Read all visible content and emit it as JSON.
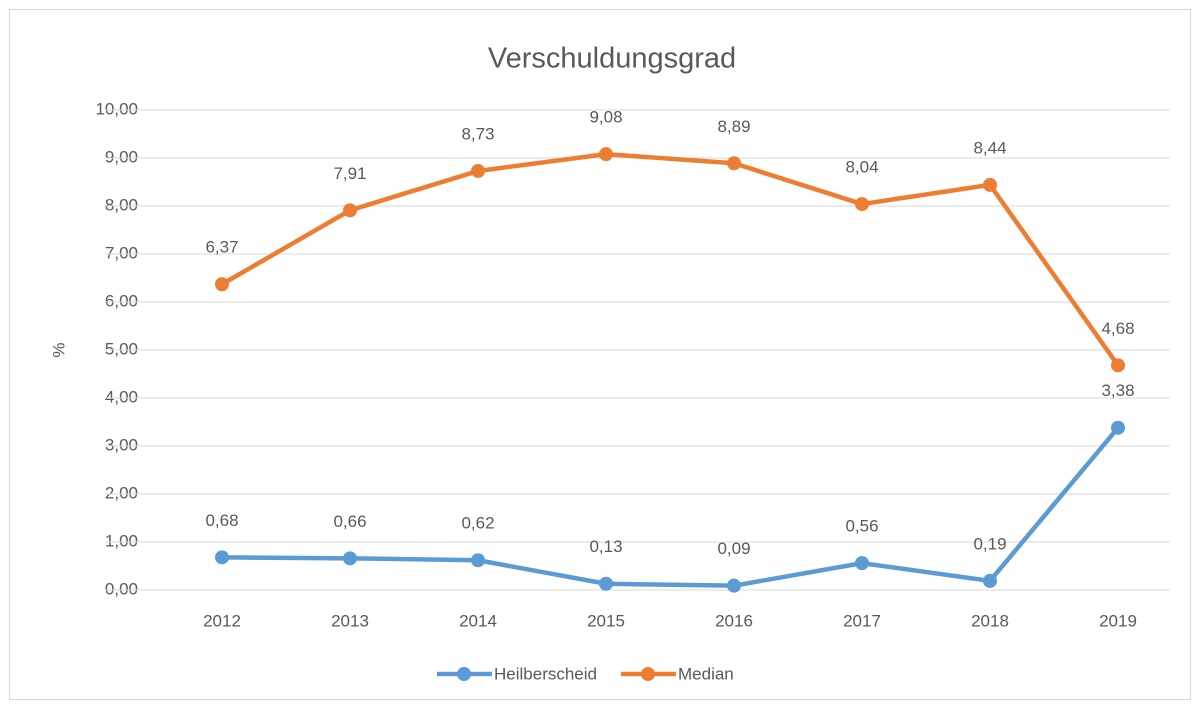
{
  "chart_data": {
    "type": "line",
    "title": "Verschuldungsgrad",
    "y_label": "%",
    "categories": [
      "2012",
      "2013",
      "2014",
      "2015",
      "2016",
      "2017",
      "2018",
      "2019"
    ],
    "series": [
      {
        "name": "Heilberscheid",
        "color": "#5b9bd5",
        "values": [
          0.68,
          0.66,
          0.62,
          0.13,
          0.09,
          0.56,
          0.19,
          3.38
        ],
        "value_labels": [
          "0,68",
          "0,66",
          "0,62",
          "0,13",
          "0,09",
          "0,56",
          "0,19",
          "3,38"
        ]
      },
      {
        "name": "Median",
        "color": "#ed7d31",
        "values": [
          6.37,
          7.91,
          8.73,
          9.08,
          8.89,
          8.04,
          8.44,
          4.68
        ],
        "value_labels": [
          "6,37",
          "7,91",
          "8,73",
          "9,08",
          "8,89",
          "8,04",
          "8,44",
          "4,68"
        ]
      }
    ],
    "ylim": [
      0,
      10
    ],
    "yticks": [
      {
        "value": 0,
        "label": "0,00"
      },
      {
        "value": 1,
        "label": "1,00"
      },
      {
        "value": 2,
        "label": "2,00"
      },
      {
        "value": 3,
        "label": "3,00"
      },
      {
        "value": 4,
        "label": "4,00"
      },
      {
        "value": 5,
        "label": "5,00"
      },
      {
        "value": 6,
        "label": "6,00"
      },
      {
        "value": 7,
        "label": "7,00"
      },
      {
        "value": 8,
        "label": "8,00"
      },
      {
        "value": 9,
        "label": "9,00"
      },
      {
        "value": 10,
        "label": "10,00"
      }
    ],
    "grid": true,
    "legend": "bottom"
  }
}
